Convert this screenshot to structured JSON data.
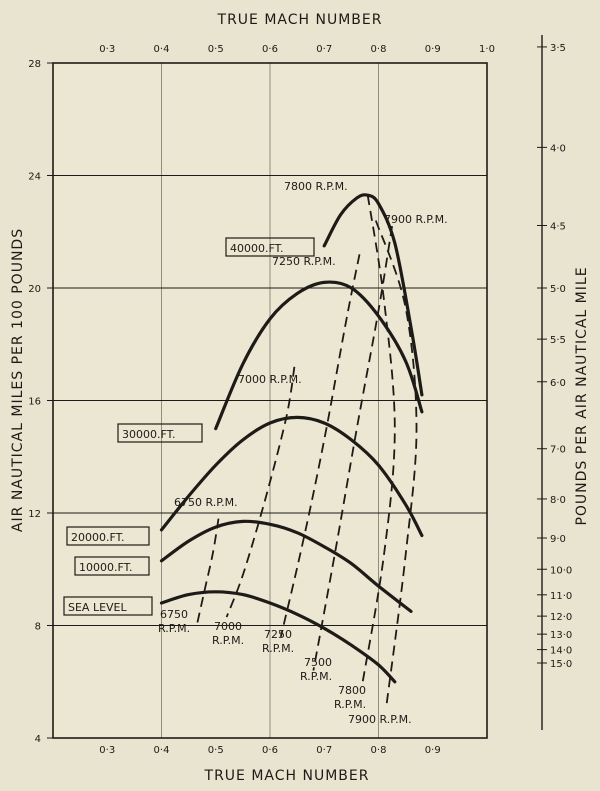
{
  "chart_data": {
    "type": "line",
    "title": "",
    "top_axis_label": "TRUE MACH NUMBER",
    "xlabel": "TRUE MACH NUMBER",
    "ylabel": "AIR NAUTICAL MILES PER 100 POUNDS",
    "right_axis_label": "POUNDS PER AIR NAUTICAL MILE",
    "xlim": [
      0.2,
      1.0
    ],
    "ylim": [
      4,
      28
    ],
    "top_ticks": [
      "0·3",
      "0·4",
      "0·5",
      "0·6",
      "0·7",
      "0·8",
      "0·9",
      "1·0"
    ],
    "top_tick_values": [
      0.3,
      0.4,
      0.5,
      0.6,
      0.7,
      0.8,
      0.9,
      1.0
    ],
    "bottom_ticks": [
      "0·3",
      "0·4",
      "0·5",
      "0·6",
      "0·7",
      "0·8",
      "0·9"
    ],
    "bottom_tick_values": [
      0.3,
      0.4,
      0.5,
      0.6,
      0.7,
      0.8,
      0.9
    ],
    "y_ticks": [
      "4",
      "8",
      "12",
      "16",
      "20",
      "24",
      "28"
    ],
    "y_tick_values": [
      4,
      8,
      12,
      16,
      20,
      24,
      28
    ],
    "right_ticks": [
      "3·5",
      "4·0",
      "4·5",
      "5·0",
      "5·5",
      "6·0",
      "7·0",
      "8·0",
      "9·0",
      "10·0",
      "11·0",
      "12·0",
      "13·0",
      "14·0",
      "15·0"
    ],
    "right_tick_values": [
      3.5,
      4.0,
      4.5,
      5.0,
      5.5,
      6.0,
      7.0,
      8.0,
      9.0,
      10.0,
      11.0,
      12.0,
      13.0,
      14.0,
      15.0
    ],
    "grid_y": [
      8,
      12,
      16,
      20,
      24
    ],
    "grid_x": [
      0.4,
      0.6,
      0.8
    ],
    "altitude_series": [
      {
        "name": "SEA LEVEL",
        "x": [
          0.4,
          0.45,
          0.5,
          0.55,
          0.6,
          0.65,
          0.7,
          0.75,
          0.8,
          0.83
        ],
        "y": [
          8.8,
          9.1,
          9.2,
          9.1,
          8.8,
          8.4,
          7.9,
          7.3,
          6.6,
          6.0
        ]
      },
      {
        "name": "10000 FT.",
        "x": [
          0.4,
          0.45,
          0.5,
          0.55,
          0.6,
          0.65,
          0.7,
          0.75,
          0.8,
          0.86
        ],
        "y": [
          10.3,
          11.0,
          11.5,
          11.7,
          11.6,
          11.3,
          10.8,
          10.2,
          9.4,
          8.5
        ]
      },
      {
        "name": "20000 FT.",
        "x": [
          0.4,
          0.45,
          0.5,
          0.55,
          0.6,
          0.65,
          0.7,
          0.75,
          0.8,
          0.85,
          0.88
        ],
        "y": [
          11.4,
          12.6,
          13.7,
          14.6,
          15.2,
          15.4,
          15.2,
          14.6,
          13.7,
          12.3,
          11.2
        ]
      },
      {
        "name": "30000 FT.",
        "x": [
          0.5,
          0.55,
          0.6,
          0.65,
          0.7,
          0.75,
          0.8,
          0.85,
          0.88
        ],
        "y": [
          15.0,
          17.3,
          18.9,
          19.8,
          20.2,
          20.0,
          19.0,
          17.4,
          15.6
        ]
      },
      {
        "name": "40000 FT.",
        "x": [
          0.7,
          0.73,
          0.76,
          0.78,
          0.8,
          0.83,
          0.86,
          0.88
        ],
        "y": [
          21.5,
          22.6,
          23.2,
          23.3,
          23.0,
          21.6,
          18.6,
          16.2
        ]
      }
    ],
    "rpm_series": [
      {
        "name": "6750 R.P.M.",
        "x": [
          0.505,
          0.495,
          0.48,
          0.465
        ],
        "y": [
          11.8,
          10.6,
          9.3,
          8.0
        ]
      },
      {
        "name": "7000 R.P.M.",
        "x": [
          0.645,
          0.63,
          0.59,
          0.55,
          0.52
        ],
        "y": [
          17.2,
          15.4,
          12.4,
          9.8,
          8.3
        ]
      },
      {
        "name": "7250 R.P.M.",
        "x": [
          0.765,
          0.74,
          0.7,
          0.66,
          0.62
        ],
        "y": [
          21.2,
          18.8,
          14.6,
          10.9,
          7.6
        ]
      },
      {
        "name": "7500 R.P.M.",
        "x": [
          0.825,
          0.8,
          0.76,
          0.72,
          0.68
        ],
        "y": [
          22.2,
          19.2,
          15.0,
          10.6,
          6.4
        ]
      },
      {
        "name": "7800 R.P.M.",
        "x": [
          0.78,
          0.81,
          0.83,
          0.81,
          0.77
        ],
        "y": [
          23.3,
          19.6,
          15.0,
          10.5,
          5.9
        ]
      },
      {
        "name": "7900 R.P.M.",
        "x": [
          0.795,
          0.85,
          0.87,
          0.85,
          0.815
        ],
        "y": [
          22.4,
          19.3,
          15.0,
          10.5,
          5.2
        ]
      }
    ],
    "altitude_labels": [
      "SEA LEVEL",
      "10000.FT.",
      "20000.FT.",
      "30000.FT.",
      "40000.FT."
    ],
    "rpm_labels": [
      "7800 R.P.M.",
      "7900 R.P.M.",
      "7250 R.P.M.",
      "7000 R.P.M.",
      "6750 R.P.M.",
      "6750",
      "R.P.M.",
      "7000",
      "R.P.M.",
      "7250",
      "R.P.M.",
      "7500",
      "R.P.M.",
      "7800",
      "R.P.M.",
      "7900 R.P.M."
    ]
  }
}
